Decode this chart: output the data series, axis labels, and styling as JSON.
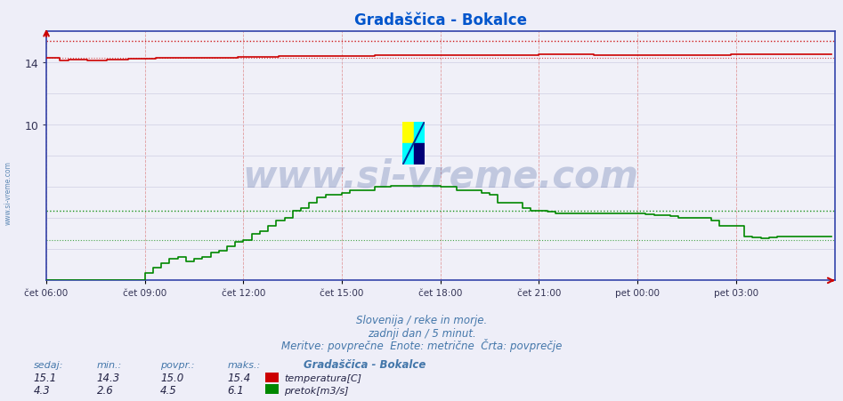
{
  "title": "Gradaščica - Bokalce",
  "title_color": "#0055cc",
  "bg_color": "#eeeef8",
  "plot_bg_color": "#f0f0f8",
  "temp_color": "#cc0000",
  "flow_color": "#008800",
  "temp_min": 14.3,
  "temp_max": 15.4,
  "temp_avg": 15.0,
  "temp_now": 15.1,
  "flow_min": 2.6,
  "flow_max": 6.1,
  "flow_avg": 4.5,
  "flow_now": 4.3,
  "ymin": 0,
  "ymax": 16.0,
  "ytick_vals": [
    10,
    14
  ],
  "n_points": 288,
  "tick_step": 36,
  "xlabel_times": [
    "čet 06:00",
    "čet 09:00",
    "čet 12:00",
    "čet 15:00",
    "čet 18:00",
    "čet 21:00",
    "pet 00:00",
    "pet 03:00"
  ],
  "watermark": "www.si-vreme.com",
  "footer1": "Slovenija / reke in morje.",
  "footer2": "zadnji dan / 5 minut.",
  "footer3": "Meritve: povprečne  Enote: metrične  Črta: povprečje",
  "legend_title": "Gradaščica - Bokalce",
  "legend_temp": "temperatura[C]",
  "legend_flow": "pretok[m3/s]",
  "watermark_color": "#1a3a8a",
  "footer_color": "#4477aa",
  "sidebar_text": "www.si-vreme.com",
  "sidebar_color": "#4477aa",
  "vgrid_color": "#dd8888",
  "hgrid_color": "#aaaacc"
}
